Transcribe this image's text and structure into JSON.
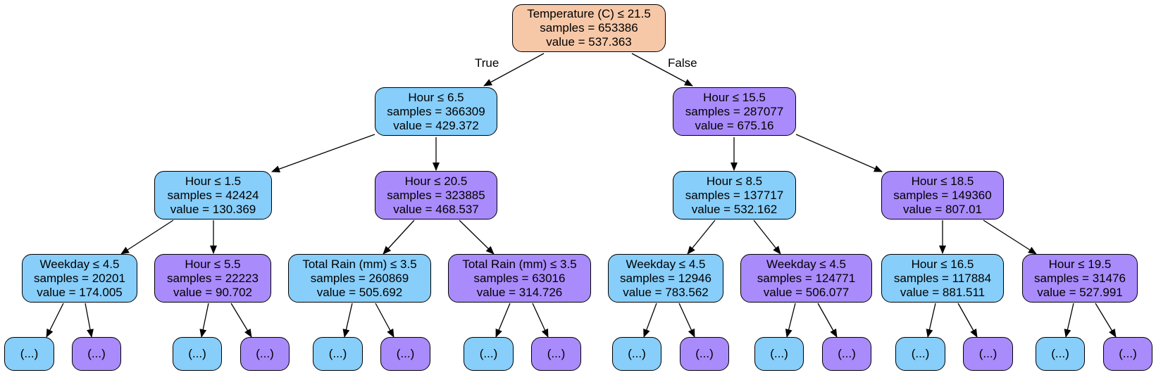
{
  "colors": {
    "root": "#f6c8a8",
    "blue": "#87cefa",
    "purple": "#a98bfc"
  },
  "edge_labels": {
    "true_label": "True",
    "false_label": "False"
  },
  "nodes": [
    {
      "id": "n0",
      "color": "root",
      "lines": [
        "Temperature (C) ≤ 21.5",
        "samples = 653386",
        "value = 537.363"
      ]
    },
    {
      "id": "n1",
      "color": "blue",
      "lines": [
        "Hour ≤ 6.5",
        "samples = 366309",
        "value = 429.372"
      ]
    },
    {
      "id": "n2",
      "color": "purple",
      "lines": [
        "Hour ≤ 15.5",
        "samples = 287077",
        "value = 675.16"
      ]
    },
    {
      "id": "n3",
      "color": "blue",
      "lines": [
        "Hour ≤ 1.5",
        "samples = 42424",
        "value = 130.369"
      ]
    },
    {
      "id": "n4",
      "color": "purple",
      "lines": [
        "Hour ≤ 20.5",
        "samples = 323885",
        "value = 468.537"
      ]
    },
    {
      "id": "n5",
      "color": "blue",
      "lines": [
        "Hour ≤ 8.5",
        "samples = 137717",
        "value = 532.162"
      ]
    },
    {
      "id": "n6",
      "color": "purple",
      "lines": [
        "Hour ≤ 18.5",
        "samples = 149360",
        "value = 807.01"
      ]
    },
    {
      "id": "n7",
      "color": "blue",
      "lines": [
        "Weekday ≤ 4.5",
        "samples = 20201",
        "value = 174.005"
      ]
    },
    {
      "id": "n8",
      "color": "purple",
      "lines": [
        "Hour ≤ 5.5",
        "samples = 22223",
        "value = 90.702"
      ]
    },
    {
      "id": "n9",
      "color": "blue",
      "lines": [
        "Total Rain (mm) ≤ 3.5",
        "samples = 260869",
        "value = 505.692"
      ]
    },
    {
      "id": "n10",
      "color": "purple",
      "lines": [
        "Total Rain (mm) ≤ 3.5",
        "samples = 63016",
        "value = 314.726"
      ]
    },
    {
      "id": "n11",
      "color": "blue",
      "lines": [
        "Weekday ≤ 4.5",
        "samples = 12946",
        "value = 783.562"
      ]
    },
    {
      "id": "n12",
      "color": "purple",
      "lines": [
        "Weekday ≤ 4.5",
        "samples = 124771",
        "value = 506.077"
      ]
    },
    {
      "id": "n13",
      "color": "blue",
      "lines": [
        "Hour ≤ 16.5",
        "samples = 117884",
        "value = 881.511"
      ]
    },
    {
      "id": "n14",
      "color": "purple",
      "lines": [
        "Hour ≤ 19.5",
        "samples = 31476",
        "value = 527.991"
      ]
    },
    {
      "id": "l0",
      "color": "blue",
      "lines": [
        "(...)"
      ]
    },
    {
      "id": "l1",
      "color": "purple",
      "lines": [
        "(...)"
      ]
    },
    {
      "id": "l2",
      "color": "blue",
      "lines": [
        "(...)"
      ]
    },
    {
      "id": "l3",
      "color": "purple",
      "lines": [
        "(...)"
      ]
    },
    {
      "id": "l4",
      "color": "blue",
      "lines": [
        "(...)"
      ]
    },
    {
      "id": "l5",
      "color": "purple",
      "lines": [
        "(...)"
      ]
    },
    {
      "id": "l6",
      "color": "blue",
      "lines": [
        "(...)"
      ]
    },
    {
      "id": "l7",
      "color": "purple",
      "lines": [
        "(...)"
      ]
    },
    {
      "id": "l8",
      "color": "blue",
      "lines": [
        "(...)"
      ]
    },
    {
      "id": "l9",
      "color": "purple",
      "lines": [
        "(...)"
      ]
    },
    {
      "id": "l10",
      "color": "blue",
      "lines": [
        "(...)"
      ]
    },
    {
      "id": "l11",
      "color": "purple",
      "lines": [
        "(...)"
      ]
    },
    {
      "id": "l12",
      "color": "blue",
      "lines": [
        "(...)"
      ]
    },
    {
      "id": "l13",
      "color": "purple",
      "lines": [
        "(...)"
      ]
    },
    {
      "id": "l14",
      "color": "blue",
      "lines": [
        "(...)"
      ]
    },
    {
      "id": "l15",
      "color": "purple",
      "lines": [
        "(...)"
      ]
    }
  ],
  "edges": [
    [
      "n0",
      "n1"
    ],
    [
      "n0",
      "n2"
    ],
    [
      "n1",
      "n3"
    ],
    [
      "n1",
      "n4"
    ],
    [
      "n2",
      "n5"
    ],
    [
      "n2",
      "n6"
    ],
    [
      "n3",
      "n7"
    ],
    [
      "n3",
      "n8"
    ],
    [
      "n4",
      "n9"
    ],
    [
      "n4",
      "n10"
    ],
    [
      "n5",
      "n11"
    ],
    [
      "n5",
      "n12"
    ],
    [
      "n6",
      "n13"
    ],
    [
      "n6",
      "n14"
    ],
    [
      "n7",
      "l0"
    ],
    [
      "n7",
      "l1"
    ],
    [
      "n8",
      "l2"
    ],
    [
      "n8",
      "l3"
    ],
    [
      "n9",
      "l4"
    ],
    [
      "n9",
      "l5"
    ],
    [
      "n10",
      "l6"
    ],
    [
      "n10",
      "l7"
    ],
    [
      "n11",
      "l8"
    ],
    [
      "n11",
      "l9"
    ],
    [
      "n12",
      "l10"
    ],
    [
      "n12",
      "l11"
    ],
    [
      "n13",
      "l12"
    ],
    [
      "n13",
      "l13"
    ],
    [
      "n14",
      "l14"
    ],
    [
      "n14",
      "l15"
    ]
  ]
}
